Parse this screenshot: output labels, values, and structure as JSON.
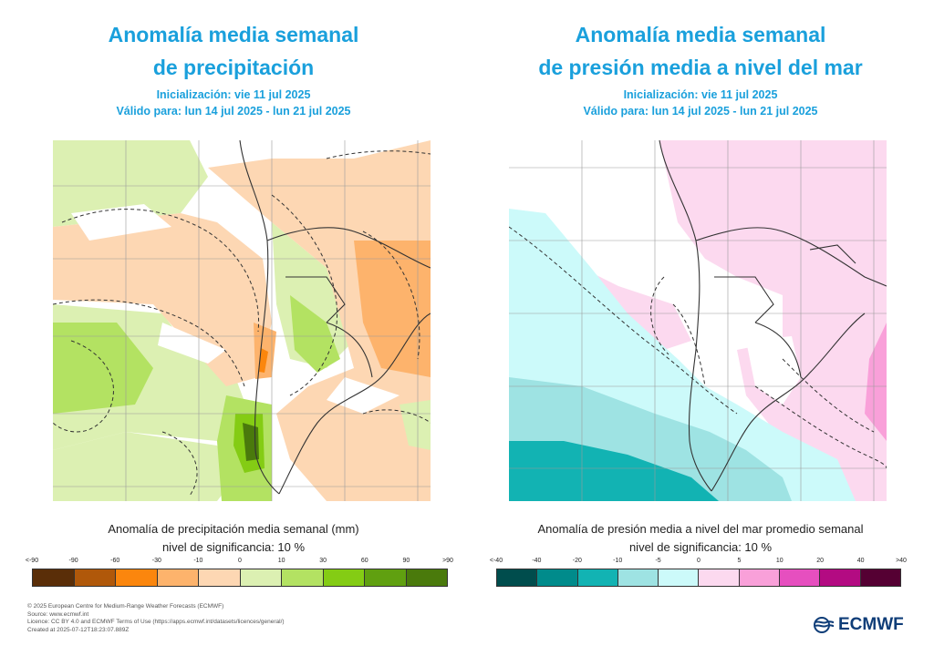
{
  "left": {
    "title_line1": "Anomalía media semanal",
    "title_line2": "de precipitación",
    "init": "Inicialización: vie 11 jul 2025",
    "valid": "Válido para: lun 14 jul 2025 - lun 21 jul 2025",
    "legend_title": "Anomalía de precipitación media semanal (mm)",
    "significance": "nivel de significancia: 10 %",
    "ticks": [
      "<-90",
      "-90",
      "-60",
      "-30",
      "-10",
      "0",
      "10",
      "30",
      "60",
      "90",
      ">90"
    ],
    "colors": [
      "#5a2e08",
      "#b0580a",
      "#fb860d",
      "#fdb36c",
      "#fdd7b3",
      "#dcf0b2",
      "#b3e262",
      "#84cc14",
      "#60a010",
      "#4a7a0c"
    ]
  },
  "right": {
    "title_line1": "Anomalía media semanal",
    "title_line2": "de presión media a nivel del mar",
    "init": "Inicialización: vie 11 jul 2025",
    "valid": "Válido para: lun 14 jul 2025 - lun 21 jul 2025",
    "legend_title": "Anomalía de presión media a nivel del mar promedio semanal",
    "significance": "nivel de significancia: 10 %",
    "ticks": [
      "<-40",
      "-40",
      "-20",
      "-10",
      "-5",
      "0",
      "5",
      "10",
      "20",
      "40",
      ">40"
    ],
    "colors": [
      "#004d4d",
      "#008b8b",
      "#12b3b3",
      "#9ee3e3",
      "#ccfafa",
      "#fcd9ef",
      "#f9a0d9",
      "#e64fbf",
      "#b30b82",
      "#550033"
    ]
  },
  "footer": {
    "line1": "© 2025 European Centre for Medium-Range Weather Forecasts (ECMWF)",
    "line2": "Source: www.ecmwf.int",
    "line3": "Licence: CC BY 4.0 and ECMWF Terms of Use (https://apps.ecmwf.int/datasets/licences/general/)",
    "line4": "Created at 2025-07-12T18:23:07.889Z"
  },
  "logo": {
    "text": "ECMWF"
  }
}
